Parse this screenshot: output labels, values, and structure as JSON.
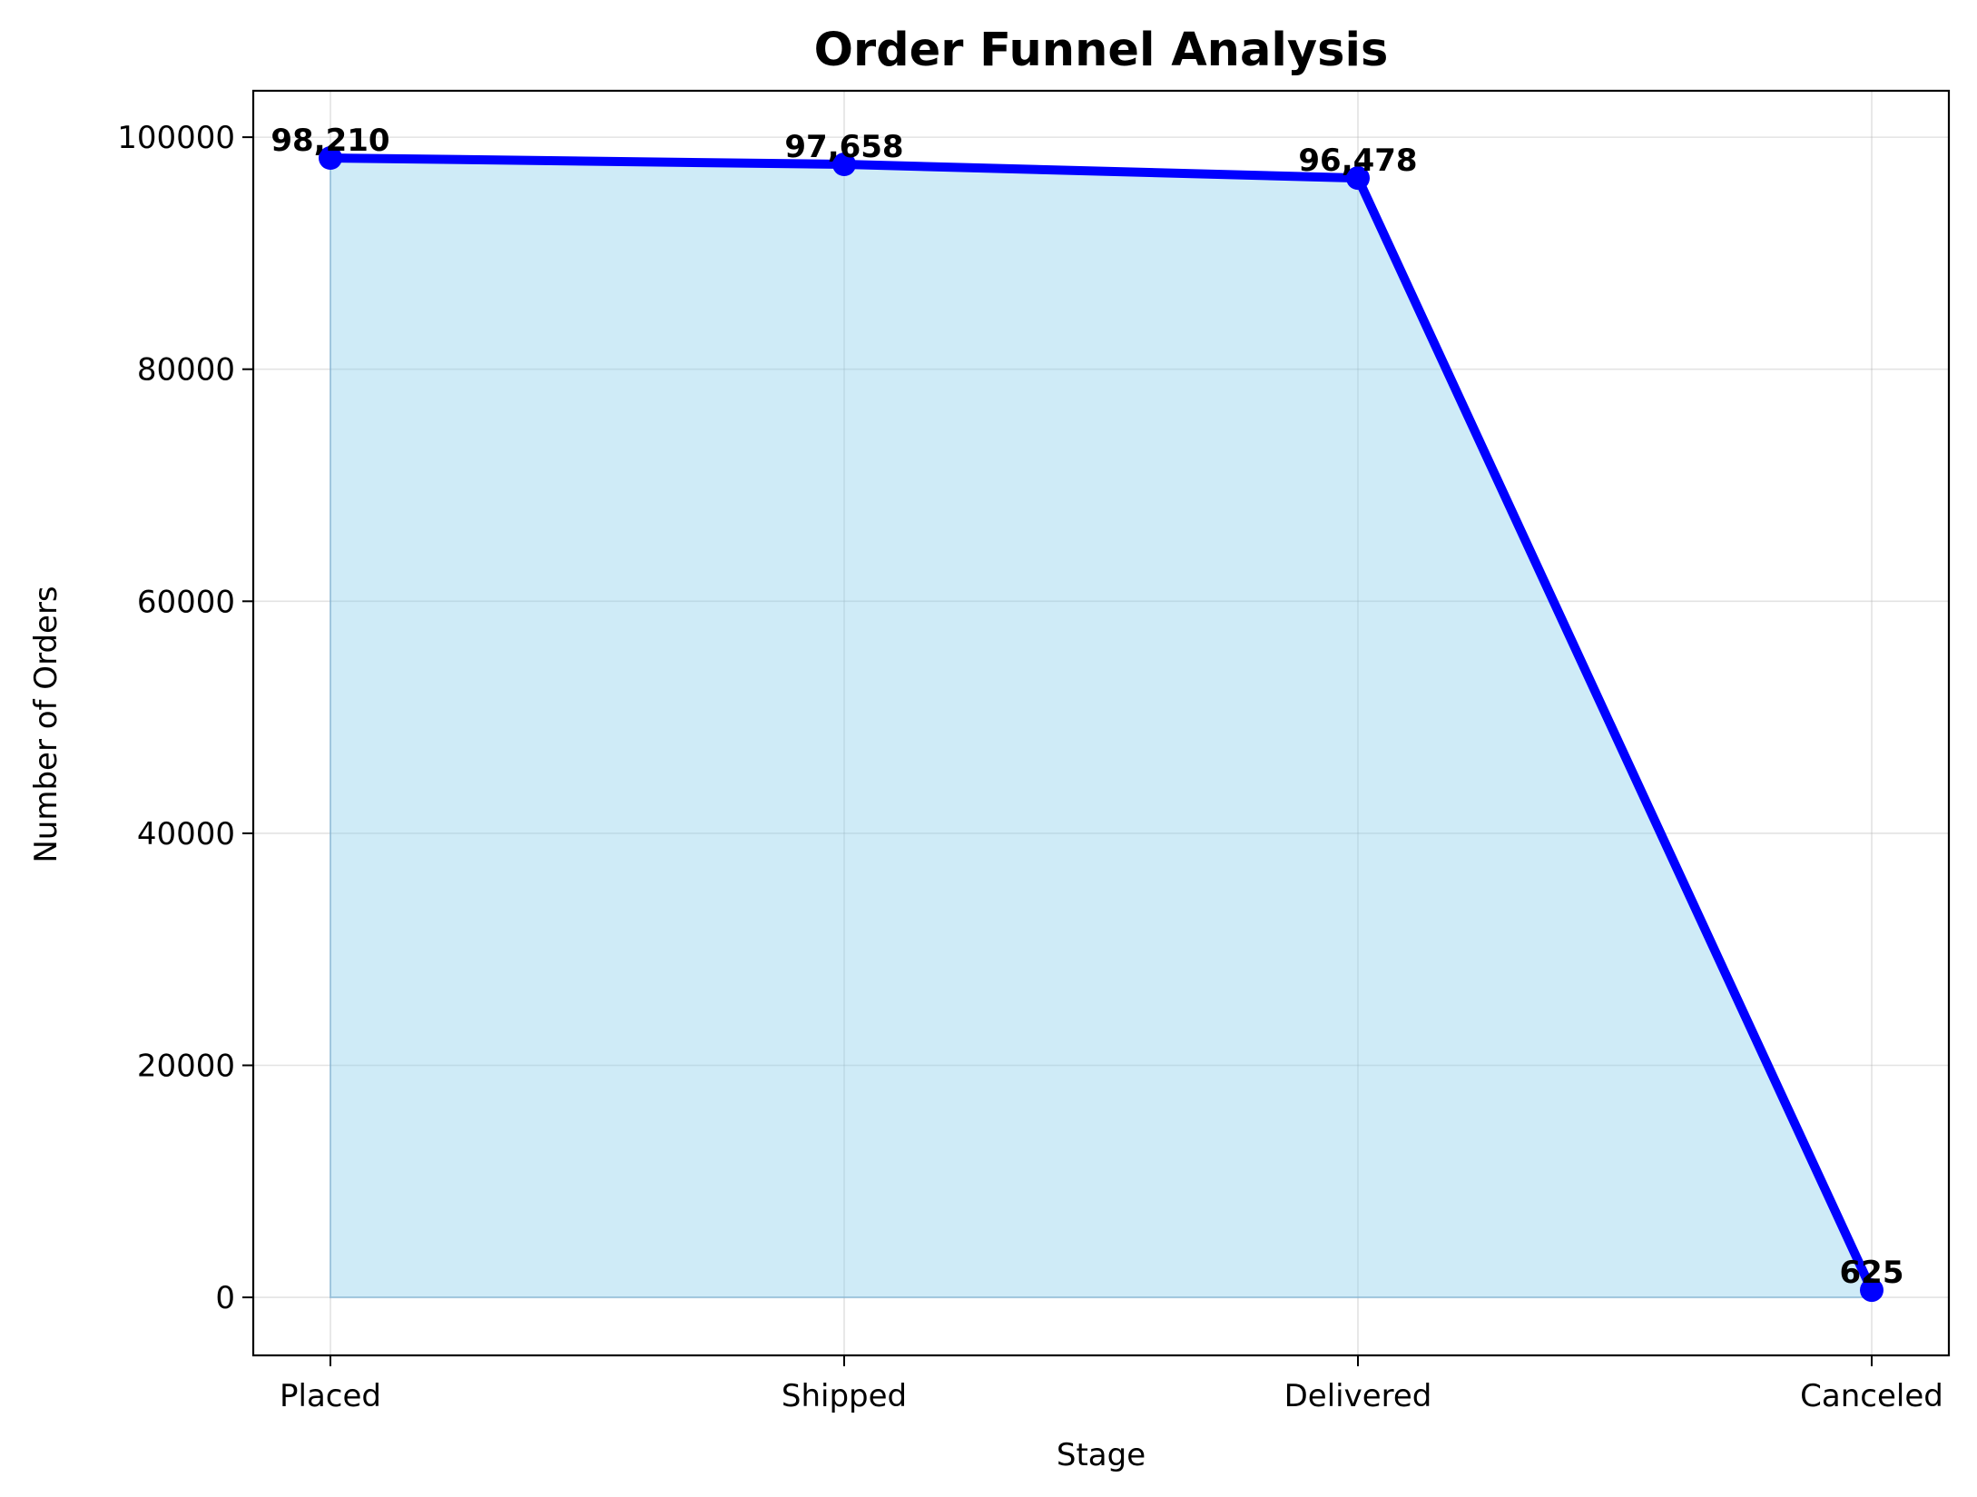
{
  "chart_data": {
    "type": "area",
    "title": "Order Funnel Analysis",
    "xlabel": "Stage",
    "ylabel": "Number of Orders",
    "categories": [
      "Placed",
      "Shipped",
      "Delivered",
      "Canceled"
    ],
    "series": [
      {
        "values": [
          98210,
          97658,
          96478,
          625
        ],
        "data_labels": [
          "98,210",
          "97,658",
          "96,478",
          "625"
        ],
        "line_color": "#0000ff",
        "marker_color": "#0000ff",
        "fill_color": "#87ceeb"
      }
    ],
    "ylim": [
      -5000,
      104000
    ],
    "yticks": [
      0,
      20000,
      40000,
      60000,
      80000,
      100000
    ],
    "ytick_labels": [
      "0",
      "20000",
      "40000",
      "60000",
      "80000",
      "100000"
    ],
    "grid": true,
    "legend": false
  }
}
